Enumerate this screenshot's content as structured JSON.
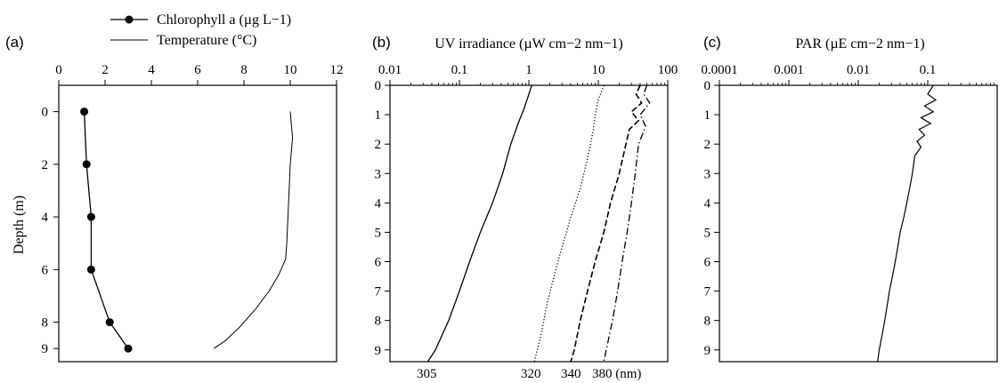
{
  "chart_data": [
    {
      "panel": "(a)",
      "type": "line",
      "xlabel": "",
      "ylabel": "Depth (m)",
      "xlim": [
        0,
        12
      ],
      "ylim": [
        9.5,
        -1
      ],
      "x_ticks": [
        "0",
        "2",
        "4",
        "6",
        "8",
        "10",
        "12"
      ],
      "y_ticks": [
        "0",
        "2",
        "4",
        "6",
        "8",
        "9"
      ],
      "legend": {
        "chlorophyll": "Chlorophyll a (µg L−1)",
        "temperature": "Temperature (°C)"
      },
      "series": [
        {
          "name": "Chlorophyll a (µg L−1)",
          "markers": true,
          "points": [
            [
              1.1,
              0
            ],
            [
              1.2,
              2
            ],
            [
              1.4,
              4
            ],
            [
              1.4,
              6
            ],
            [
              2.2,
              8
            ],
            [
              3.0,
              9
            ]
          ]
        },
        {
          "name": "Temperature (°C)",
          "markers": false,
          "points": [
            [
              10.0,
              0
            ],
            [
              10.1,
              1
            ],
            [
              10.0,
              2
            ],
            [
              9.95,
              3
            ],
            [
              9.9,
              4
            ],
            [
              9.85,
              5
            ],
            [
              9.8,
              5.6
            ],
            [
              9.5,
              6.2
            ],
            [
              9.1,
              6.8
            ],
            [
              8.5,
              7.5
            ],
            [
              7.8,
              8.2
            ],
            [
              7.2,
              8.7
            ],
            [
              6.7,
              9
            ]
          ]
        }
      ]
    },
    {
      "panel": "(b)",
      "type": "line",
      "title": "UV irradiance (µW cm−2 nm−1)",
      "xscale": "log",
      "xlim": [
        0.01,
        100
      ],
      "ylim": [
        9.4,
        0
      ],
      "x_ticks": [
        "0.01",
        "0.1",
        "1",
        "10",
        "100"
      ],
      "y_ticks": [
        "0",
        "1",
        "2",
        "3",
        "4",
        "5",
        "6",
        "7",
        "8",
        "9"
      ],
      "wavelength_labels": [
        "305",
        "320",
        "340",
        "380 (nm)"
      ],
      "series": [
        {
          "name": "305",
          "style": "solid",
          "points": [
            [
              1.1,
              0
            ],
            [
              1.0,
              0.3
            ],
            [
              0.85,
              0.8
            ],
            [
              0.7,
              1.3
            ],
            [
              0.55,
              2
            ],
            [
              0.42,
              3
            ],
            [
              0.3,
              4
            ],
            [
              0.2,
              5
            ],
            [
              0.14,
              6
            ],
            [
              0.1,
              7
            ],
            [
              0.07,
              8
            ],
            [
              0.045,
              9
            ],
            [
              0.035,
              9.4
            ]
          ]
        },
        {
          "name": "320",
          "style": "dotted",
          "points": [
            [
              12,
              0
            ],
            [
              10,
              0.5
            ],
            [
              9,
              1
            ],
            [
              8.5,
              1.5
            ],
            [
              7,
              2.5
            ],
            [
              5.5,
              3.5
            ],
            [
              4,
              4.5
            ],
            [
              3,
              5.5
            ],
            [
              2.3,
              6.5
            ],
            [
              1.8,
              7.5
            ],
            [
              1.5,
              8.5
            ],
            [
              1.2,
              9.4
            ]
          ]
        },
        {
          "name": "340",
          "style": "dashed",
          "points": [
            [
              40,
              0
            ],
            [
              35,
              0.3
            ],
            [
              42,
              0.6
            ],
            [
              30,
              0.9
            ],
            [
              38,
              1.2
            ],
            [
              28,
              1.5
            ],
            [
              25,
              2
            ],
            [
              20,
              3
            ],
            [
              15,
              4
            ],
            [
              12,
              5
            ],
            [
              9,
              6
            ],
            [
              7,
              7
            ],
            [
              5.5,
              8
            ],
            [
              4.5,
              9
            ],
            [
              4,
              9.4
            ]
          ]
        },
        {
          "name": "380",
          "style": "dashdot",
          "points": [
            [
              50,
              0
            ],
            [
              45,
              0.3
            ],
            [
              55,
              0.6
            ],
            [
              40,
              1.0
            ],
            [
              48,
              1.4
            ],
            [
              38,
              2
            ],
            [
              34,
              3
            ],
            [
              30,
              4
            ],
            [
              26,
              5
            ],
            [
              22,
              6
            ],
            [
              19,
              7
            ],
            [
              16,
              8
            ],
            [
              13,
              9
            ],
            [
              12,
              9.4
            ]
          ]
        }
      ]
    },
    {
      "panel": "(c)",
      "type": "line",
      "title": "PAR (µE cm−2 nm−1)",
      "xscale": "log",
      "xlim": [
        0.0001,
        1
      ],
      "ylim": [
        9.4,
        0
      ],
      "x_ticks": [
        "0.0001",
        "0.001",
        "0.01",
        "0.1"
      ],
      "y_ticks": [
        "0",
        "1",
        "2",
        "3",
        "4",
        "5",
        "6",
        "7",
        "8",
        "9"
      ],
      "series": [
        {
          "name": "PAR",
          "points": [
            [
              0.12,
              0
            ],
            [
              0.1,
              0.3
            ],
            [
              0.13,
              0.5
            ],
            [
              0.09,
              0.7
            ],
            [
              0.12,
              0.9
            ],
            [
              0.08,
              1.1
            ],
            [
              0.11,
              1.3
            ],
            [
              0.075,
              1.5
            ],
            [
              0.09,
              1.7
            ],
            [
              0.07,
              1.9
            ],
            [
              0.08,
              2.1
            ],
            [
              0.065,
              2.4
            ],
            [
              0.06,
              3
            ],
            [
              0.055,
              3.5
            ],
            [
              0.05,
              4
            ],
            [
              0.045,
              4.5
            ],
            [
              0.04,
              5
            ],
            [
              0.037,
              5.5
            ],
            [
              0.034,
              6
            ],
            [
              0.031,
              6.5
            ],
            [
              0.028,
              7
            ],
            [
              0.026,
              7.5
            ],
            [
              0.024,
              8
            ],
            [
              0.022,
              8.5
            ],
            [
              0.02,
              9
            ],
            [
              0.019,
              9.4
            ]
          ]
        }
      ]
    }
  ]
}
